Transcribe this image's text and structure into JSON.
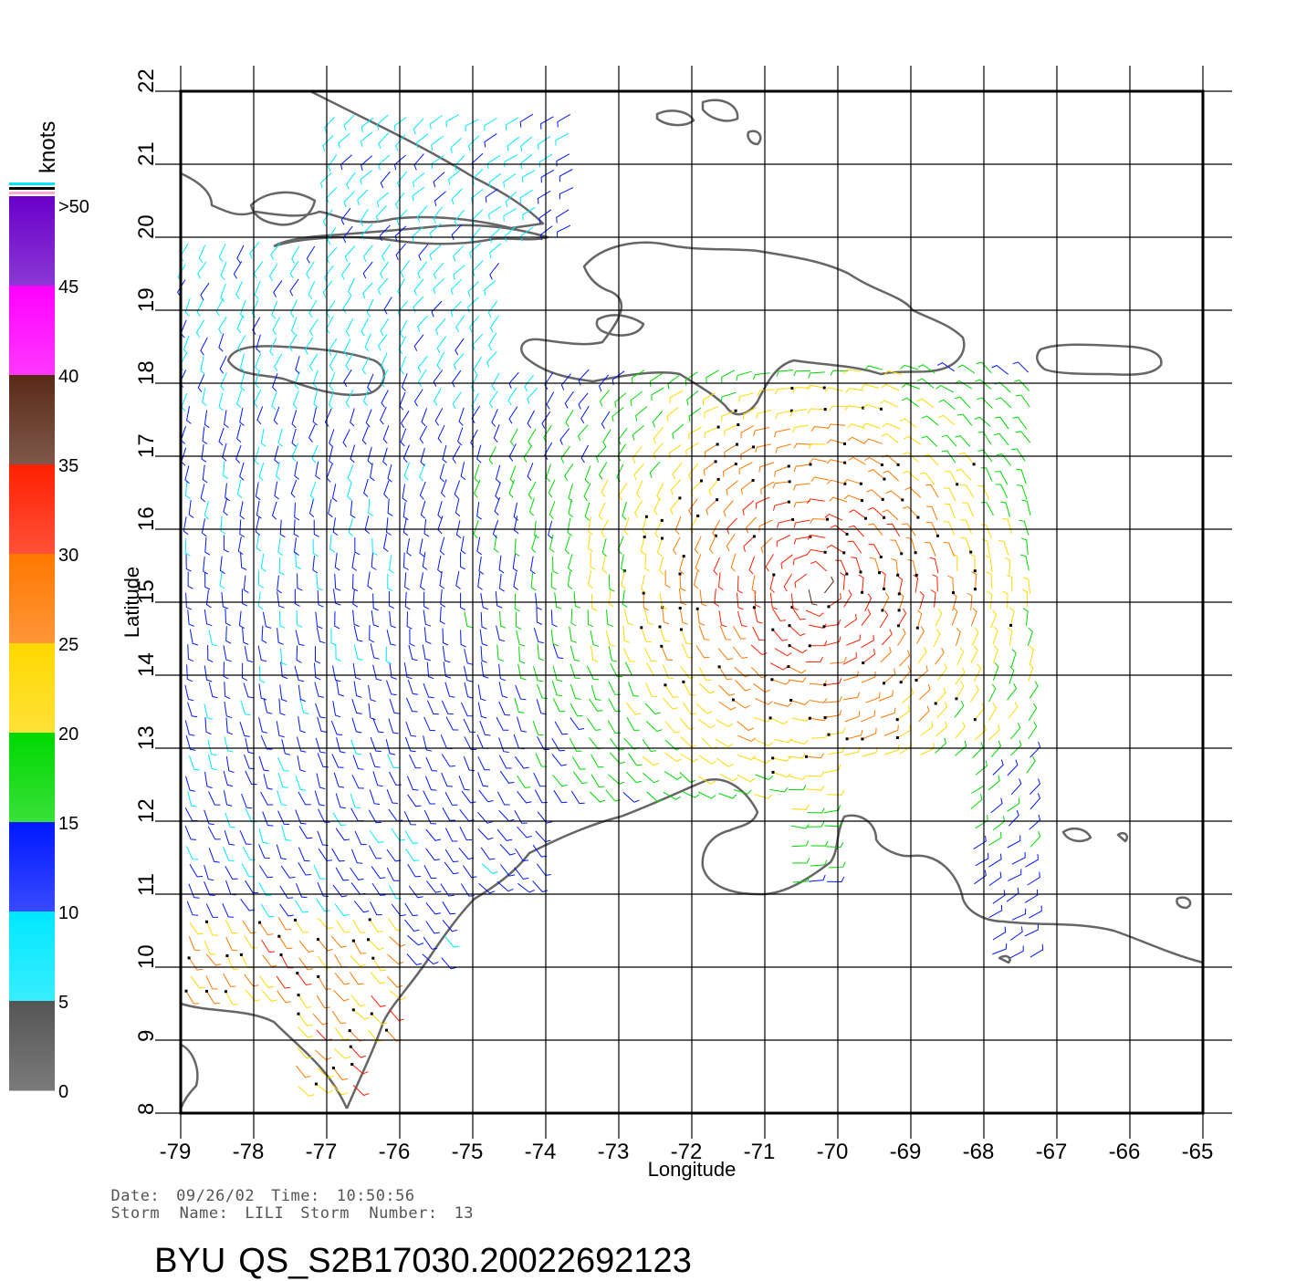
{
  "map": {
    "lon_range": [
      -79,
      -65
    ],
    "lat_range": [
      8,
      22
    ],
    "lon_ticks": [
      "-79",
      "-78",
      "-77",
      "-76",
      "-75",
      "-74",
      "-73",
      "-72",
      "-71",
      "-70",
      "-69",
      "-68",
      "-67",
      "-66",
      "-65"
    ],
    "lat_ticks": [
      "8",
      "9",
      "10",
      "11",
      "12",
      "13",
      "14",
      "15",
      "16",
      "17",
      "18",
      "19",
      "20",
      "21",
      "22"
    ],
    "xlabel": "Longitude",
    "ylabel": "Latitude",
    "grid": true,
    "coastline_color": "#666666",
    "legend": {
      "unit": "knots",
      "labels": [
        ">50",
        "45",
        "40",
        "35",
        "30",
        "25",
        "20",
        "15",
        "10",
        "5",
        "0"
      ],
      "bands": [
        {
          "min": 45,
          "max": 50,
          "color": "#6a00c8"
        },
        {
          "min": 40,
          "max": 45,
          "color": "#ff00ff"
        },
        {
          "min": 35,
          "max": 40,
          "color": "#5a2a18"
        },
        {
          "min": 30,
          "max": 35,
          "color": "#ff2000"
        },
        {
          "min": 25,
          "max": 30,
          "color": "#ff7800"
        },
        {
          "min": 20,
          "max": 25,
          "color": "#ffd800"
        },
        {
          "min": 15,
          "max": 20,
          "color": "#00d800"
        },
        {
          "min": 10,
          "max": 15,
          "color": "#0018ff"
        },
        {
          "min": 5,
          "max": 10,
          "color": "#00e8ff"
        },
        {
          "min": 0,
          "max": 5,
          "color": "#555555"
        }
      ]
    }
  },
  "info": {
    "date_label": "Date:",
    "date": "09/26/02",
    "time_label": "Time:",
    "time": "10:50:56",
    "storm_name_label": "Storm  Name:",
    "storm_name": "LILI",
    "storm_number_label": "Storm  Number:",
    "storm_number": "13"
  },
  "title": {
    "source": "BYU",
    "file_id": "QS_S2B17030.20022692123"
  }
}
